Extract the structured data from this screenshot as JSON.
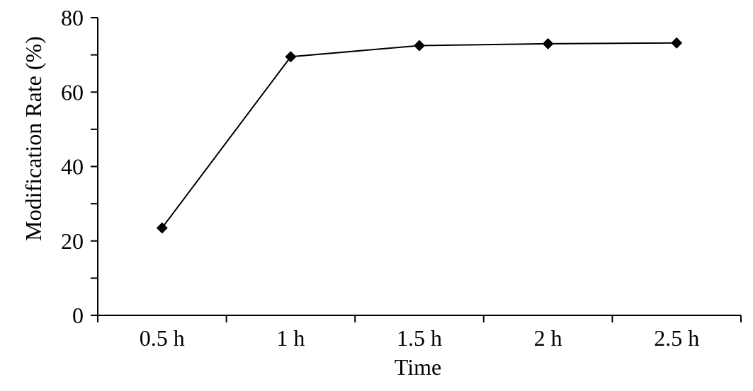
{
  "chart_data": {
    "type": "line",
    "xlabel": "Time",
    "ylabel": "Modification Rate (%)",
    "categories": [
      "0.5 h",
      "1 h",
      "1.5 h",
      "2 h",
      "2.5 h"
    ],
    "series": [
      {
        "values": [
          23.5,
          69.5,
          72.5,
          73.0,
          73.2
        ],
        "marker": "diamond",
        "color": "#000000"
      }
    ],
    "ylim": [
      0,
      80
    ],
    "yticks": [
      0,
      20,
      40,
      60,
      80
    ],
    "grid": false,
    "legend": "none"
  }
}
